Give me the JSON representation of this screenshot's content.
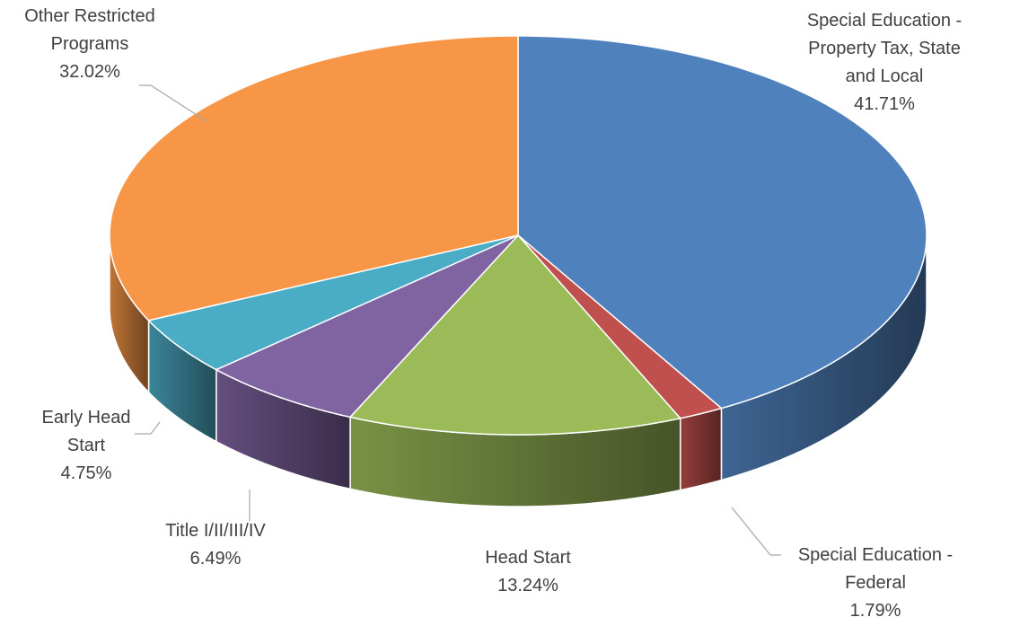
{
  "chart_data": {
    "type": "pie3d",
    "categories": [
      "Special Education - Property Tax, State and Local",
      "Special Education - Federal",
      "Head Start",
      "Title I/II/III/IV",
      "Early Head Start",
      "Other Restricted Programs"
    ],
    "values": [
      41.71,
      1.79,
      13.24,
      6.49,
      4.75,
      32.02
    ],
    "value_labels": [
      "41.71%",
      "1.79%",
      "13.24%",
      "6.49%",
      "4.75%",
      "32.02%"
    ],
    "colors": [
      "#4f81bd",
      "#c0504d",
      "#9bbb59",
      "#8064a2",
      "#4bacc6",
      "#f79646"
    ]
  }
}
